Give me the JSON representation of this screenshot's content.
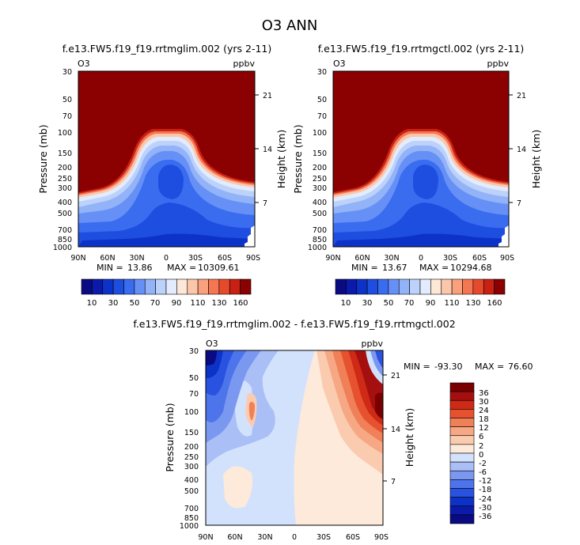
{
  "figure": {
    "title": "O3 ANN",
    "colors": {
      "o3_scale": [
        "#0a0a82",
        "#0b1aa8",
        "#0d32c8",
        "#1e4ee0",
        "#3a6cf0",
        "#6690f5",
        "#93b3f8",
        "#bcd2fb",
        "#e2ecfe",
        "#fde8d8",
        "#fcc6aa",
        "#f9a07c",
        "#f47652",
        "#e64a2c",
        "#c92014",
        "#8b0000"
      ],
      "diff_scale": [
        "#0a0a82",
        "#0b1aa8",
        "#0d32c8",
        "#2952e0",
        "#4d74ea",
        "#7a98f0",
        "#a9bff6",
        "#d3e2fc",
        "#fdeadb",
        "#fbcbb0",
        "#f6a884",
        "#f08058",
        "#e65230",
        "#cf2a16",
        "#a50f0f",
        "#7a0000"
      ]
    }
  },
  "chart_data": [
    {
      "type": "heatmap",
      "panel": "left",
      "title": "f.e13.FW5.f19_f19.rrtmglim.002 (yrs 2-11)",
      "corner_left": "O3",
      "corner_right": "ppbv",
      "xlabel": "",
      "ylabel": "Pressure (mb)",
      "ylabel_right": "Height (km)",
      "x_ticks": [
        "90N",
        "60N",
        "30N",
        "0",
        "30S",
        "60S",
        "90S"
      ],
      "y_ticks": [
        "30",
        "50",
        "70",
        "100",
        "150",
        "200",
        "250",
        "300",
        "400",
        "500",
        "700",
        "850",
        "1000"
      ],
      "y_ticks_right": [
        "21",
        "14",
        "7"
      ],
      "min_label": "MIN =",
      "min_value": "13.86",
      "max_label": "MAX =",
      "max_value": "10309.61",
      "colorbar_labels": [
        "10",
        "30",
        "50",
        "70",
        "90",
        "110",
        "130",
        "160"
      ]
    },
    {
      "type": "heatmap",
      "panel": "right",
      "title": "f.e13.FW5.f19_f19.rrtmgctl.002 (yrs 2-11)",
      "corner_left": "O3",
      "corner_right": "ppbv",
      "xlabel": "",
      "ylabel": "Pressure (mb)",
      "ylabel_right": "Height (km)",
      "x_ticks": [
        "90N",
        "60N",
        "30N",
        "0",
        "30S",
        "60S",
        "90S"
      ],
      "y_ticks": [
        "30",
        "50",
        "70",
        "100",
        "150",
        "200",
        "250",
        "300",
        "400",
        "500",
        "700",
        "850",
        "1000"
      ],
      "y_ticks_right": [
        "21",
        "14",
        "7"
      ],
      "min_label": "MIN =",
      "min_value": "13.67",
      "max_label": "MAX =",
      "max_value": "10294.68",
      "colorbar_labels": [
        "10",
        "30",
        "50",
        "70",
        "90",
        "110",
        "130",
        "160"
      ]
    },
    {
      "type": "heatmap",
      "panel": "difference",
      "title": "f.e13.FW5.f19_f19.rrtmglim.002 - f.e13.FW5.f19_f19.rrtmgctl.002",
      "corner_left": "O3",
      "corner_right": "ppbv",
      "xlabel": "",
      "ylabel": "Pressure (mb)",
      "ylabel_right": "Height (km)",
      "x_ticks": [
        "90N",
        "60N",
        "30N",
        "0",
        "30S",
        "60S",
        "90S"
      ],
      "y_ticks": [
        "30",
        "50",
        "70",
        "100",
        "150",
        "200",
        "250",
        "300",
        "400",
        "500",
        "700",
        "850",
        "1000"
      ],
      "y_ticks_right": [
        "21",
        "14",
        "7"
      ],
      "min_label": "MIN =",
      "min_value": "-93.30",
      "max_label": "MAX =",
      "max_value": "76.60",
      "colorbar_labels": [
        "36",
        "30",
        "24",
        "18",
        "12",
        "6",
        "2",
        "0",
        "-2",
        "-6",
        "-12",
        "-18",
        "-24",
        "-30",
        "-36"
      ]
    }
  ]
}
